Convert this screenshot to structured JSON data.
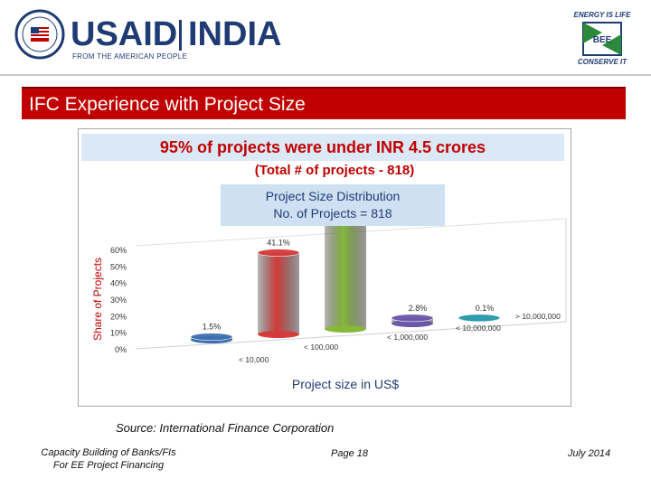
{
  "header": {
    "usaid": "USAID",
    "india": "INDIA",
    "usaid_tagline": "FROM THE AMERICAN PEOPLE",
    "bee_top": "ENERGY IS LIFE",
    "bee_center": "BEE",
    "bee_bottom": "CONSERVE IT"
  },
  "title": "IFC Experience with Project Size",
  "banner": "95% of projects were under  INR 4.5 crores",
  "subtitle": "(Total # of projects - 818)",
  "distribution": {
    "line1": "Project Size Distribution",
    "line2": "No. of Projects = 818"
  },
  "chart_data": {
    "type": "bar",
    "title": "Project Size Distribution",
    "xlabel": "Project size in  US$",
    "ylabel": "Share of Projects",
    "ylim": [
      0,
      60
    ],
    "yticks": [
      "0%",
      "10%",
      "20%",
      "30%",
      "40%",
      "50%",
      "60%"
    ],
    "categories": [
      "< 10,000",
      "< 100,000",
      "< 1,000,000",
      "< 10,000,000",
      "> 10,000,000"
    ],
    "values": [
      1.5,
      41.1,
      54.5,
      2.8,
      0.1
    ],
    "data_labels": [
      "1.5%",
      "41.1%",
      "",
      "2.8%",
      "0.1%"
    ],
    "colors": [
      "#3e6fb0",
      "#d43b3b",
      "#86b83a",
      "#6b57a8",
      "#2f9bab"
    ]
  },
  "footer": {
    "source": "Source: International Finance Corporation",
    "left_line1": "Capacity Building of Banks/FIs",
    "left_line2": "For EE Project Financing",
    "page": "Page 18",
    "date": "July 2014"
  }
}
